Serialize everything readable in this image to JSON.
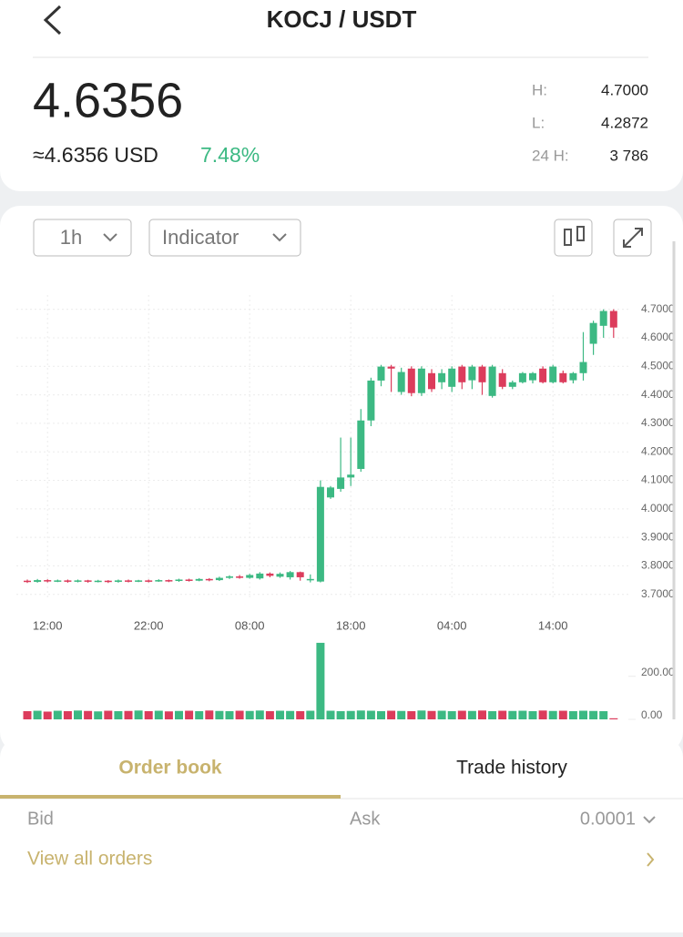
{
  "header": {
    "title": "KOCJ / USDT"
  },
  "ticker": {
    "price": "4.6356",
    "usd": "≈4.6356 USD",
    "change": "7.48%",
    "stats": [
      {
        "label": "H:",
        "value": "4.7000"
      },
      {
        "label": "L:",
        "value": "4.2872"
      },
      {
        "label": "24 H:",
        "value": "3 786"
      }
    ]
  },
  "toolbar": {
    "interval": "1h",
    "indicator": "Indicator"
  },
  "chart_data": {
    "type": "candlestick",
    "x": [
      null,
      null,
      "12:00",
      null,
      null,
      null,
      null,
      null,
      null,
      null,
      null,
      null,
      "22:00",
      null,
      null,
      null,
      null,
      null,
      null,
      null,
      null,
      null,
      "08:00",
      null,
      null,
      null,
      null,
      null,
      null,
      null,
      null,
      null,
      "18:00",
      null,
      null,
      null,
      null,
      null,
      null,
      null,
      null,
      null,
      "04:00",
      null,
      null,
      null,
      null,
      null,
      null,
      null,
      null,
      null,
      "14:00",
      null,
      null,
      null,
      null,
      null,
      null
    ],
    "open": [
      3.748,
      3.744,
      3.75,
      3.746,
      3.749,
      3.745,
      3.749,
      3.745,
      3.748,
      3.744,
      3.749,
      3.745,
      3.749,
      3.746,
      3.75,
      3.747,
      3.752,
      3.748,
      3.754,
      3.75,
      3.758,
      3.763,
      3.758,
      3.756,
      3.773,
      3.762,
      3.76,
      3.778,
      3.75,
      3.745,
      4.04,
      4.07,
      4.11,
      4.14,
      4.31,
      4.45,
      4.499,
      4.41,
      4.492,
      4.406,
      4.476,
      4.444,
      4.428,
      4.499,
      4.451,
      4.499,
      4.396,
      4.476,
      4.428,
      4.444,
      4.451,
      4.492,
      4.444,
      4.476,
      4.451,
      4.476,
      4.579,
      4.642,
      4.694
    ],
    "high": [
      3.752,
      3.754,
      3.753,
      3.752,
      3.752,
      3.752,
      3.751,
      3.751,
      3.75,
      3.752,
      3.752,
      3.751,
      3.752,
      3.753,
      3.752,
      3.755,
      3.755,
      3.757,
      3.757,
      3.762,
      3.767,
      3.768,
      3.772,
      3.778,
      3.777,
      3.777,
      3.782,
      3.78,
      3.77,
      4.1,
      4.08,
      4.25,
      4.25,
      4.35,
      4.46,
      4.505,
      4.505,
      4.495,
      4.5,
      4.5,
      4.49,
      4.49,
      4.5,
      4.505,
      4.505,
      4.505,
      4.505,
      4.49,
      4.45,
      4.48,
      4.48,
      4.5,
      4.505,
      4.485,
      4.48,
      4.62,
      4.66,
      4.7,
      4.7
    ],
    "low": [
      3.74,
      3.741,
      3.742,
      3.743,
      3.741,
      3.742,
      3.741,
      3.742,
      3.74,
      3.741,
      3.742,
      3.743,
      3.742,
      3.744,
      3.743,
      3.744,
      3.745,
      3.746,
      3.746,
      3.747,
      3.754,
      3.755,
      3.755,
      3.752,
      3.76,
      3.758,
      3.752,
      3.748,
      3.742,
      3.742,
      4.035,
      4.06,
      4.08,
      4.13,
      4.29,
      4.43,
      4.41,
      4.4,
      4.395,
      4.396,
      4.41,
      4.42,
      4.41,
      4.42,
      4.42,
      4.4,
      4.39,
      4.42,
      4.42,
      4.44,
      4.44,
      4.44,
      4.44,
      4.44,
      4.44,
      4.45,
      4.54,
      4.6,
      4.6
    ],
    "close": [
      3.744,
      3.75,
      3.746,
      3.749,
      3.745,
      3.749,
      3.745,
      3.748,
      3.744,
      3.749,
      3.745,
      3.749,
      3.746,
      3.75,
      3.747,
      3.752,
      3.748,
      3.754,
      3.75,
      3.758,
      3.763,
      3.758,
      3.768,
      3.773,
      3.765,
      3.772,
      3.778,
      3.76,
      3.754,
      4.077,
      4.075,
      4.11,
      4.12,
      4.31,
      4.45,
      4.499,
      4.492,
      4.48,
      4.406,
      4.492,
      4.42,
      4.476,
      4.492,
      4.444,
      4.499,
      4.444,
      4.499,
      4.428,
      4.444,
      4.476,
      4.476,
      4.444,
      4.499,
      4.444,
      4.476,
      4.515,
      4.652,
      4.694,
      4.636
    ],
    "volume": [
      38,
      40,
      36,
      40,
      38,
      41,
      39,
      37,
      40,
      38,
      39,
      41,
      38,
      40,
      37,
      39,
      40,
      38,
      41,
      39,
      38,
      40,
      39,
      41,
      38,
      40,
      39,
      38,
      40,
      355,
      40,
      38,
      39,
      41,
      40,
      38,
      40,
      39,
      38,
      41,
      39,
      40,
      38,
      40,
      39,
      41,
      38,
      40,
      39,
      40,
      38,
      41,
      39,
      40,
      38,
      40,
      39,
      38,
      5
    ],
    "up_color": "#3cb983",
    "down_color": "#dc3c5c",
    "ylim": [
      3.68,
      4.75
    ],
    "yticks": [
      {
        "value": 3.7,
        "label": "3.7000"
      },
      {
        "value": 3.8,
        "label": "3.8000"
      },
      {
        "value": 3.9,
        "label": "3.9000"
      },
      {
        "value": 4.0,
        "label": "4.0000"
      },
      {
        "value": 4.1,
        "label": "4.1000"
      },
      {
        "value": 4.2,
        "label": "4.2000"
      },
      {
        "value": 4.3,
        "label": "4.3000"
      },
      {
        "value": 4.4,
        "label": "4.4000"
      },
      {
        "value": 4.5,
        "label": "4.5000"
      },
      {
        "value": 4.6,
        "label": "4.6000"
      },
      {
        "value": 4.7,
        "label": "4.7000"
      }
    ],
    "y2lim": [
      0,
      380
    ],
    "y2ticks": [
      {
        "value": 0,
        "label": "0.00"
      },
      {
        "value": 200,
        "label": "200.00"
      }
    ],
    "grid": true
  },
  "tabs": [
    "Order book",
    "Trade history"
  ],
  "order_book": {
    "columns": [
      "Bid",
      "Ask"
    ],
    "precision": "0.0001",
    "view_all": "View all orders"
  }
}
